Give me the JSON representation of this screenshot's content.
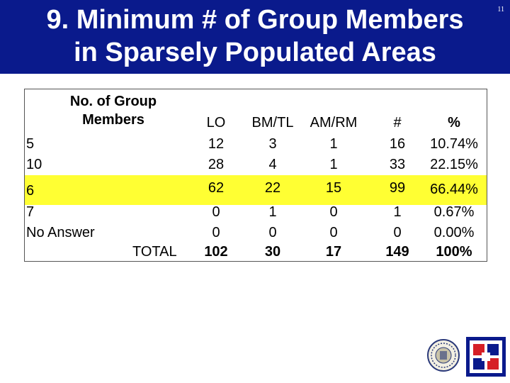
{
  "slide": {
    "title_line1": "9. Minimum # of Group Members",
    "title_line2": "in Sparsely Populated Areas",
    "page_number": "11"
  },
  "table": {
    "header_label": "No. of Group Members",
    "columns": [
      "LO",
      "BM/TL",
      "AM/RM",
      "#",
      "%"
    ],
    "rows": [
      {
        "label": "5",
        "values": [
          "12",
          "3",
          "1",
          "16",
          "10.74%"
        ]
      },
      {
        "label": "10",
        "values": [
          "28",
          "4",
          "1",
          "33",
          "22.15%"
        ]
      },
      {
        "label": "6",
        "values": [
          "62",
          "22",
          "15",
          "99",
          "66.44%"
        ],
        "highlighted": true
      },
      {
        "label": "7",
        "values": [
          "0",
          "1",
          "0",
          "1",
          "0.67%"
        ]
      },
      {
        "label": "No Answer",
        "values": [
          "0",
          "0",
          "0",
          "0",
          "0.00%"
        ]
      }
    ],
    "total": {
      "label": "TOTAL",
      "values": [
        "102",
        "30",
        "17",
        "149",
        "100%"
      ]
    },
    "highlight_color": "#ffff33"
  },
  "logos": [
    "seal-icon",
    "brand-logo-icon"
  ]
}
